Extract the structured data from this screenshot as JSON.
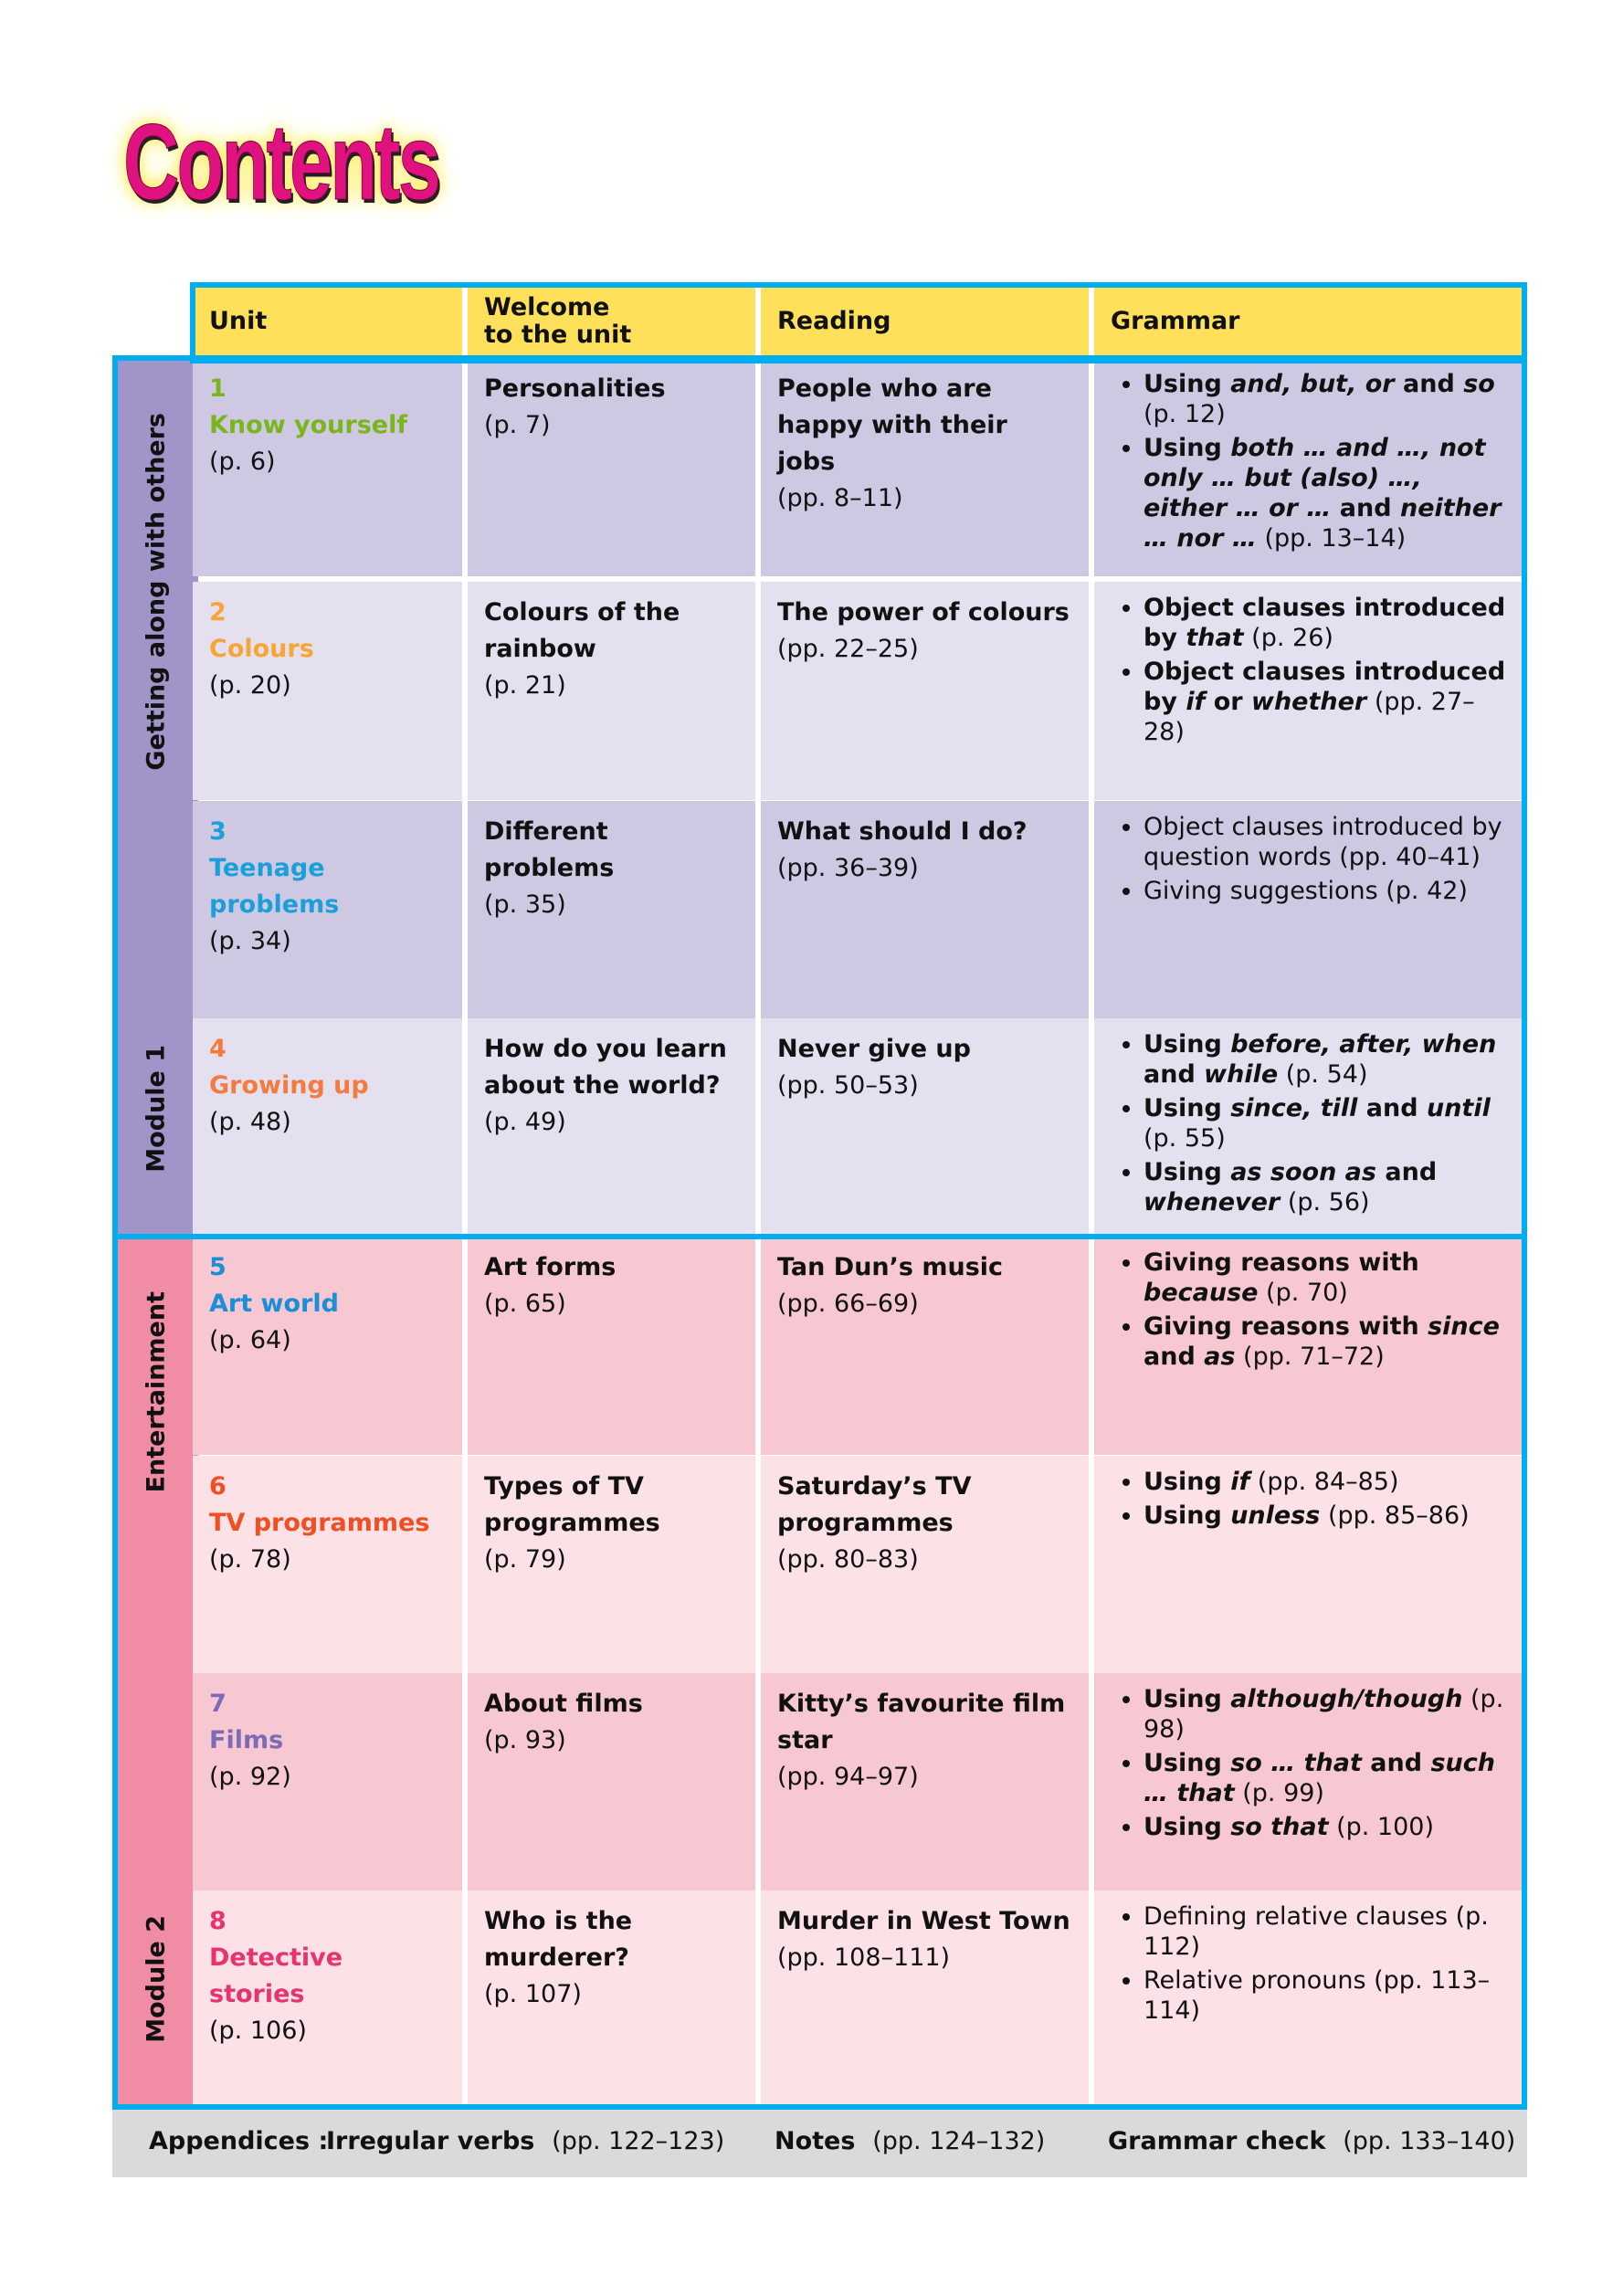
{
  "title": "Contents",
  "headers": [
    "Unit",
    "Welcome to the unit",
    "Reading",
    "Grammar"
  ],
  "colors": {
    "border": "#00aeef",
    "header": "#ffe05a",
    "module1": "#a094c8",
    "module1_row_dark": "#cfc8e2",
    "module1_row_light": "#e4e0f0",
    "module2": "#f08ca4",
    "module2_row_dark": "#f8c8d2",
    "module2_row_light": "#fce1e6"
  },
  "modules": [
    {
      "label": "Module 1",
      "theme": "Getting along with others"
    },
    {
      "label": "Module 2",
      "theme": "Entertainment"
    }
  ],
  "units": [
    {
      "num": "1",
      "name": "Know yourself",
      "page": "(p. 6)",
      "color": "#7ab51d",
      "welcome": [
        "Personalities",
        "(p. 7)"
      ],
      "reading": [
        "People who are happy with their jobs",
        "(pp. 8–11)"
      ],
      "grammar": [
        [
          [
            "Using ",
            0
          ],
          [
            "and, but, or",
            1
          ],
          [
            " and ",
            0
          ],
          [
            "so",
            1
          ],
          [
            " (p. 12)",
            0
          ]
        ],
        [
          [
            "Using ",
            0
          ],
          [
            "both … and …, not only … but (also) …, either … or …",
            1
          ],
          [
            " and ",
            0
          ],
          [
            "neither … nor …",
            1
          ],
          [
            " (pp. 13–14)",
            0
          ]
        ]
      ]
    },
    {
      "num": "2",
      "name": "Colours",
      "page": "(p. 20)",
      "color": "#f7a535",
      "welcome": [
        "Colours of the rainbow",
        "(p. 21)"
      ],
      "reading": [
        "The power of colours",
        "(pp. 22–25)"
      ],
      "grammar": [
        [
          [
            "Object clauses introduced by ",
            0
          ],
          [
            "that",
            1
          ],
          [
            " (p. 26)",
            0
          ]
        ],
        [
          [
            "Object clauses introduced by ",
            0
          ],
          [
            "if",
            1
          ],
          [
            " or ",
            0
          ],
          [
            "whether",
            1
          ],
          [
            " (pp. 27–28)",
            0
          ]
        ]
      ]
    },
    {
      "num": "3",
      "name": "Teenage problems",
      "page": "(p. 34)",
      "color": "#1a9fd9",
      "welcome": [
        "Different problems",
        "(p. 35)"
      ],
      "reading": [
        "What should I do?",
        "(pp. 36–39)"
      ],
      "grammar": [
        [
          [
            "Object clauses introduced by question words (pp. 40–41)",
            0
          ]
        ],
        [
          [
            "Giving suggestions (p. 42)",
            0
          ]
        ]
      ]
    },
    {
      "num": "4",
      "name": "Growing up",
      "page": "(p. 48)",
      "color": "#f37b3e",
      "welcome": [
        "How do you learn about the world?",
        "(p. 49)"
      ],
      "reading": [
        "Never give up",
        "(pp. 50–53)"
      ],
      "grammar": [
        [
          [
            "Using ",
            0
          ],
          [
            "before, after, when",
            1
          ],
          [
            " and ",
            0
          ],
          [
            "while",
            1
          ],
          [
            " (p. 54)",
            0
          ]
        ],
        [
          [
            "Using ",
            0
          ],
          [
            "since, till",
            1
          ],
          [
            " and ",
            0
          ],
          [
            "until",
            1
          ],
          [
            " (p. 55)",
            0
          ]
        ],
        [
          [
            "Using ",
            0
          ],
          [
            "as soon as",
            1
          ],
          [
            " and ",
            0
          ],
          [
            "whenever",
            1
          ],
          [
            " (p. 56)",
            0
          ]
        ]
      ]
    },
    {
      "num": "5",
      "name": "Art world",
      "page": "(p. 64)",
      "color": "#1a8fd6",
      "welcome": [
        "Art forms",
        "(p. 65)"
      ],
      "reading": [
        "Tan Dun’s music",
        "(pp. 66–69)"
      ],
      "grammar": [
        [
          [
            "Giving reasons with ",
            0
          ],
          [
            "because",
            1
          ],
          [
            " (p. 70)",
            0
          ]
        ],
        [
          [
            "Giving reasons with ",
            0
          ],
          [
            "since",
            1
          ],
          [
            " and ",
            0
          ],
          [
            "as",
            1
          ],
          [
            " (pp. 71–72)",
            0
          ]
        ]
      ]
    },
    {
      "num": "6",
      "name": "TV programmes",
      "page": "(p. 78)",
      "color": "#f04e23",
      "welcome": [
        "Types of TV programmes",
        "(p. 79)"
      ],
      "reading": [
        "Saturday’s TV programmes",
        "(pp. 80–83)"
      ],
      "grammar": [
        [
          [
            "Using ",
            0
          ],
          [
            "if",
            1
          ],
          [
            " (pp. 84–85)",
            0
          ]
        ],
        [
          [
            "Using ",
            0
          ],
          [
            "unless",
            1
          ],
          [
            " (pp. 85–86)",
            0
          ]
        ]
      ]
    },
    {
      "num": "7",
      "name": "Films",
      "page": "(p. 92)",
      "color": "#7e6bb5",
      "welcome": [
        "About films",
        "(p. 93)"
      ],
      "reading": [
        "Kitty’s favourite film star",
        "(pp. 94–97)"
      ],
      "grammar": [
        [
          [
            "Using ",
            0
          ],
          [
            "although/though",
            1
          ],
          [
            " (p. 98)",
            0
          ]
        ],
        [
          [
            "Using ",
            0
          ],
          [
            "so … that",
            1
          ],
          [
            " and ",
            0
          ],
          [
            "such … that",
            1
          ],
          [
            " (p. 99)",
            0
          ]
        ],
        [
          [
            "Using ",
            0
          ],
          [
            "so that",
            1
          ],
          [
            " (p. 100)",
            0
          ]
        ]
      ]
    },
    {
      "num": "8",
      "name": "Detective stories",
      "page": "(p. 106)",
      "color": "#e8336e",
      "welcome": [
        "Who is the murderer?",
        "(p. 107)"
      ],
      "reading": [
        "Murder in West Town",
        "(pp. 108–111)"
      ],
      "grammar": [
        [
          [
            "Defining relative clauses (p. 112)",
            0
          ]
        ],
        [
          [
            "Relative pronouns (pp. 113–114)",
            0
          ]
        ]
      ]
    }
  ],
  "appendices": {
    "label": "Appendices :",
    "items": [
      {
        "name": "Irregular verbs",
        "pages": "(pp. 122–123)"
      },
      {
        "name": "Notes",
        "pages": "(pp. 124–132)"
      },
      {
        "name": "Grammar check",
        "pages": "(pp. 133–140)"
      }
    ]
  }
}
